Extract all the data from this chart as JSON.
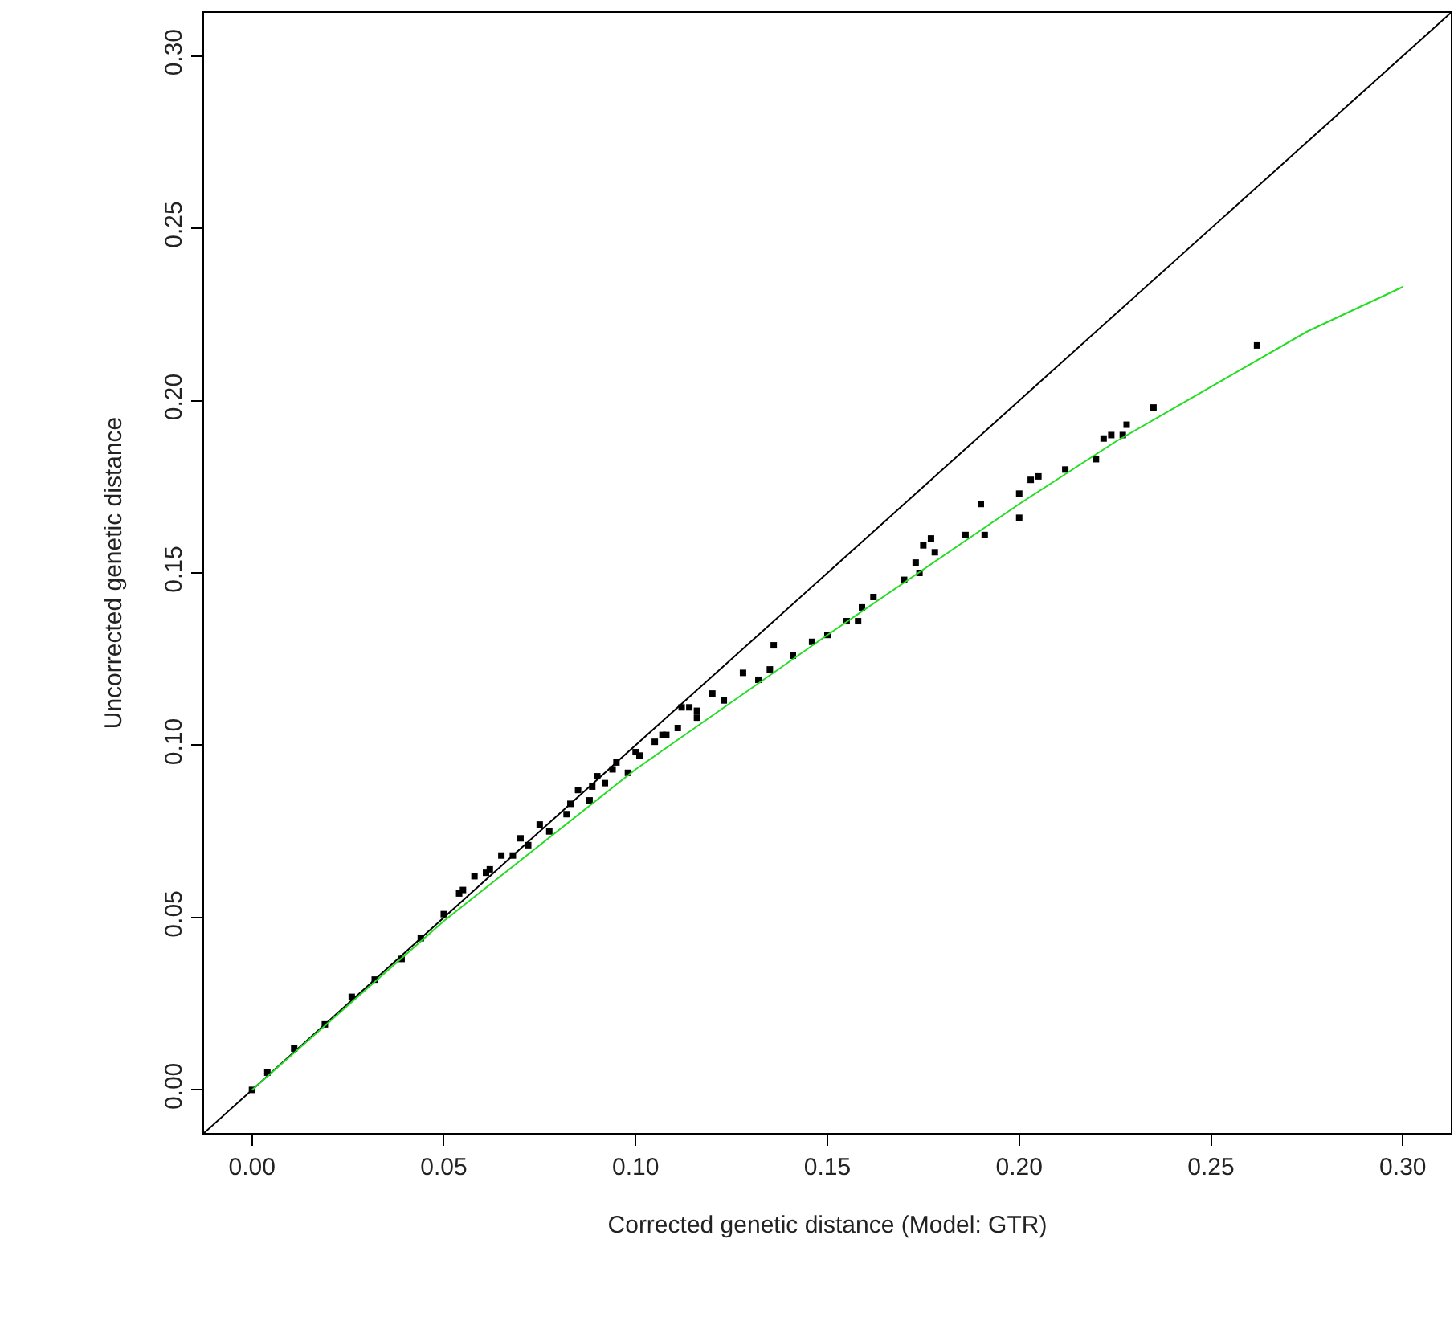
{
  "chart_data": {
    "type": "scatter",
    "xlabel": "Corrected genetic distance (Model: GTR)",
    "ylabel": "Uncorrected genetic distance",
    "xlim": [
      -0.0125,
      0.3125
    ],
    "ylim": [
      -0.0125,
      0.3125
    ],
    "xticks": [
      {
        "value": 0,
        "label": "0.00"
      },
      {
        "value": 0.05,
        "label": "0.05"
      },
      {
        "value": 0.1,
        "label": "0.10"
      },
      {
        "value": 0.15,
        "label": "0.15"
      },
      {
        "value": 0.2,
        "label": "0.20"
      },
      {
        "value": 0.25,
        "label": "0.25"
      },
      {
        "value": 0.3,
        "label": "0.30"
      }
    ],
    "yticks": [
      {
        "value": 0,
        "label": "0.00"
      },
      {
        "value": 0.05,
        "label": "0.05"
      },
      {
        "value": 0.1,
        "label": "0.10"
      },
      {
        "value": 0.15,
        "label": "0.15"
      },
      {
        "value": 0.2,
        "label": "0.20"
      },
      {
        "value": 0.25,
        "label": "0.25"
      },
      {
        "value": 0.3,
        "label": "0.30"
      }
    ],
    "grid": false,
    "legend": false,
    "series": [
      {
        "marker": "square",
        "color": "#000000",
        "x": [
          0,
          0.004,
          0.011,
          0.019,
          0.026,
          0.032,
          0.039,
          0.044,
          0.05,
          0.054,
          0.055,
          0.058,
          0.061,
          0.062,
          0.065,
          0.068,
          0.07,
          0.072,
          0.075,
          0.0775,
          0.082,
          0.083,
          0.085,
          0.0887,
          0.088,
          0.09,
          0.092,
          0.094,
          0.095,
          0.098,
          0.1,
          0.101,
          0.105,
          0.107,
          0.108,
          0.111,
          0.112,
          0.114,
          0.116,
          0.116,
          0.12,
          0.123,
          0.128,
          0.132,
          0.135,
          0.136,
          0.141,
          0.146,
          0.15,
          0.155,
          0.158,
          0.159,
          0.162,
          0.17,
          0.173,
          0.174,
          0.175,
          0.177,
          0.178,
          0.186,
          0.19,
          0.191,
          0.2,
          0.2,
          0.203,
          0.205,
          0.212,
          0.22,
          0.222,
          0.224,
          0.227,
          0.228,
          0.235,
          0.262
        ],
        "values": [
          0,
          0.005,
          0.012,
          0.019,
          0.027,
          0.032,
          0.038,
          0.044,
          0.051,
          0.057,
          0.058,
          0.062,
          0.063,
          0.064,
          0.068,
          0.068,
          0.073,
          0.071,
          0.077,
          0.075,
          0.08,
          0.083,
          0.087,
          0.088,
          0.084,
          0.091,
          0.089,
          0.093,
          0.095,
          0.092,
          0.098,
          0.097,
          0.101,
          0.103,
          0.103,
          0.105,
          0.111,
          0.111,
          0.108,
          0.11,
          0.115,
          0.113,
          0.121,
          0.119,
          0.122,
          0.129,
          0.126,
          0.13,
          0.132,
          0.136,
          0.136,
          0.14,
          0.143,
          0.148,
          0.153,
          0.15,
          0.158,
          0.16,
          0.156,
          0.161,
          0.17,
          0.161,
          0.173,
          0.166,
          0.177,
          0.178,
          0.18,
          0.183,
          0.189,
          0.19,
          0.19,
          0.193,
          0.198,
          0.216
        ]
      },
      {
        "type": "line",
        "color": "#000000",
        "line_style": "solid",
        "x": [
          -0.0125,
          0.3125
        ],
        "values": [
          -0.0125,
          0.3125
        ]
      },
      {
        "type": "line",
        "color": "#22dd22",
        "line_style": "solid",
        "x": [
          0,
          0.05,
          0.1,
          0.15,
          0.2,
          0.225,
          0.25,
          0.275,
          0.3
        ],
        "values": [
          0,
          0.049,
          0.093,
          0.132,
          0.17,
          0.188,
          0.204,
          0.22,
          0.233
        ]
      }
    ]
  }
}
